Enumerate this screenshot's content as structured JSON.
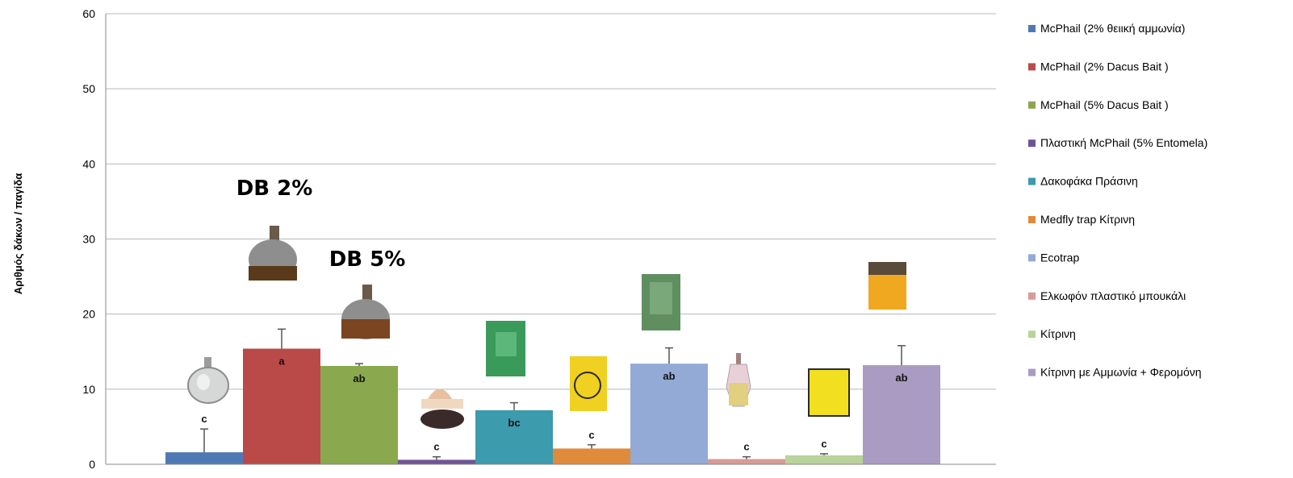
{
  "chart_data": {
    "type": "bar",
    "ylabel": "Αριθμός δάκων / παγίδα",
    "ylim": [
      0,
      60
    ],
    "yticks": [
      0,
      10,
      20,
      30,
      40,
      50,
      60
    ],
    "grid": true,
    "legend_position": "right",
    "series": [
      {
        "name": "McPhail (2% θειική αμμωνία)",
        "value": 1.6,
        "error": 3.1,
        "letter": "c",
        "color": "#4f79b4"
      },
      {
        "name": "McPhail (2% Dacus Bait )",
        "value": 15.4,
        "error": 2.6,
        "letter": "a",
        "color": "#b94a48"
      },
      {
        "name": "McPhail (5% Dacus Bait )",
        "value": 13.1,
        "error": 0.3,
        "letter": "ab",
        "color": "#8aa84e"
      },
      {
        "name": "Πλαστική McPhail (5% Entomela)",
        "value": 0.6,
        "error": 0.4,
        "letter": "c",
        "color": "#6e5496"
      },
      {
        "name": "Δακοφάκα Πράσινη",
        "value": 7.2,
        "error": 1.0,
        "letter": "bc",
        "color": "#3c9bad"
      },
      {
        "name": "Medfly trap Κίτρινη",
        "value": 2.1,
        "error": 0.5,
        "letter": "c",
        "color": "#e08a3c"
      },
      {
        "name": "Ecotrap",
        "value": 13.4,
        "error": 2.1,
        "letter": "ab",
        "color": "#93aad6"
      },
      {
        "name": "Ελκωφόν πλαστικό μπουκάλι",
        "value": 0.7,
        "error": 0.3,
        "letter": "c",
        "color": "#d89b97"
      },
      {
        "name": "Κίτρινη",
        "value": 1.2,
        "error": 0.2,
        "letter": "c",
        "color": "#b9d39a"
      },
      {
        "name": "Κίτρινη με Αμμωνία + Φερομόνη",
        "value": 13.2,
        "error": 2.6,
        "letter": "ab",
        "color": "#a99bc1"
      }
    ],
    "annotations": [
      {
        "text": "DB 2%",
        "bar_index": 1
      },
      {
        "text": "DB 5%",
        "bar_index": 2
      }
    ]
  }
}
